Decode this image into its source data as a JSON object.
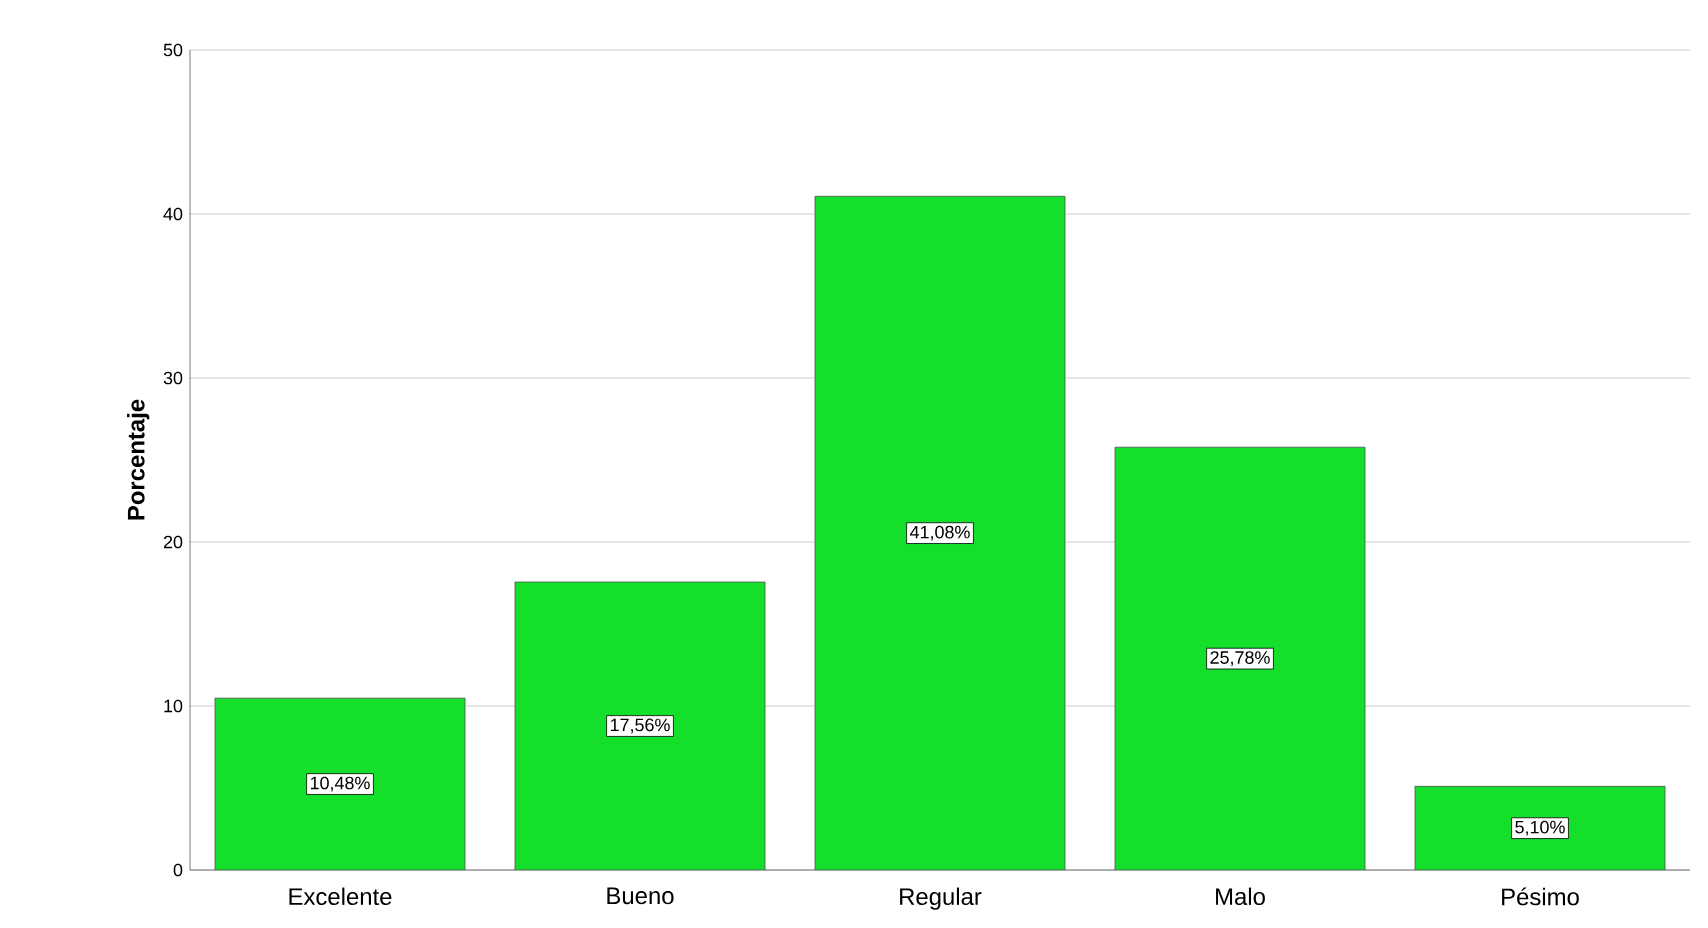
{
  "chart_data": {
    "type": "bar",
    "ylabel": "Porcentaje",
    "categories": [
      "Excelente",
      "Bueno",
      "Regular",
      "Malo",
      "Pésimo"
    ],
    "values": [
      10.48,
      17.56,
      41.08,
      25.78,
      5.1
    ],
    "value_labels": [
      "10,48%",
      "17,56%",
      "41,08%",
      "25,78%",
      "5,10%"
    ],
    "color": "#14e02c",
    "ylim": [
      0,
      50
    ],
    "yticks": [
      0,
      10,
      20,
      30,
      40,
      50
    ],
    "grid": "y"
  }
}
